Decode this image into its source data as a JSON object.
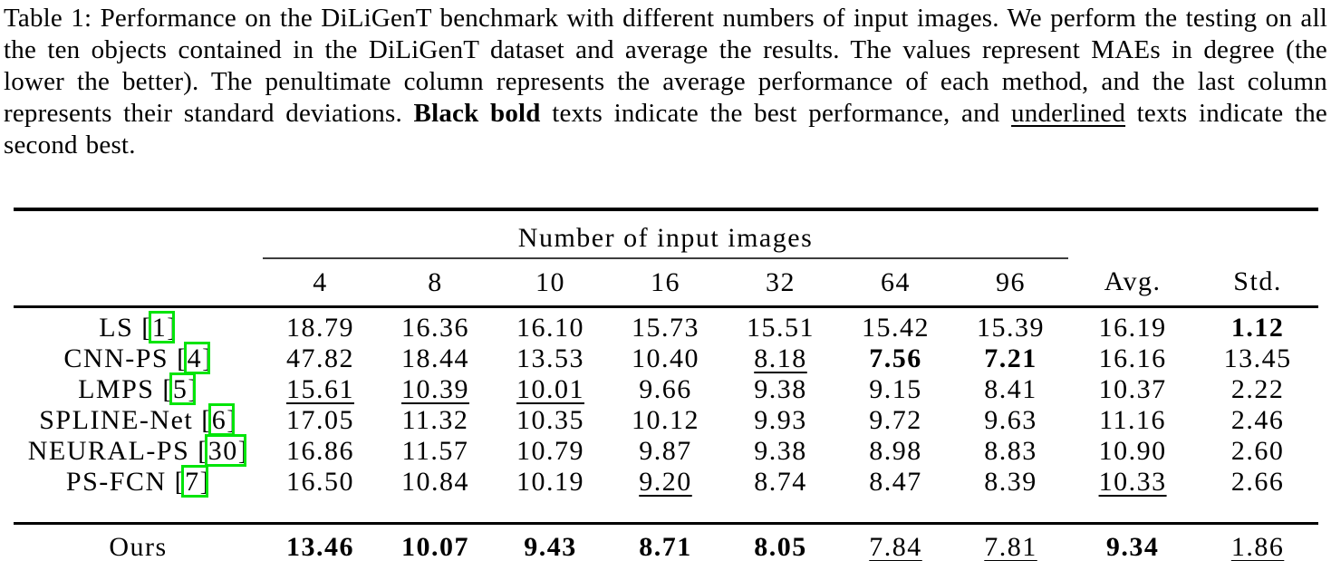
{
  "caption": {
    "segments": [
      {
        "text": "Table 1: Performance on the DiLiGenT benchmark with different numbers of input images. We perform the testing on all the ten objects contained in the DiLiGenT dataset and average the results. The values represent MAEs in degree (the lower the better). The penultimate column represents the average performance of each method, and the last column represents their standard deviations. ",
        "style": "plain"
      },
      {
        "text": "Black bold",
        "style": "bold"
      },
      {
        "text": " texts indicate the best performance, and ",
        "style": "plain"
      },
      {
        "text": "underlined",
        "style": "underline"
      },
      {
        "text": " texts indicate the second best.",
        "style": "plain"
      }
    ]
  },
  "table": {
    "group_header": "Number of input images",
    "columns": [
      "4",
      "8",
      "10",
      "16",
      "32",
      "64",
      "96",
      "Avg.",
      "Std."
    ],
    "rows": [
      {
        "method": {
          "before": "LS [",
          "cite": "1",
          "after": "]"
        },
        "cells": [
          {
            "v": "18.79"
          },
          {
            "v": "16.36"
          },
          {
            "v": "16.10"
          },
          {
            "v": "15.73"
          },
          {
            "v": "15.51"
          },
          {
            "v": "15.42"
          },
          {
            "v": "15.39"
          },
          {
            "v": "16.19"
          },
          {
            "v": "1.12",
            "s": "bold"
          }
        ]
      },
      {
        "method": {
          "before": "CNN-PS [",
          "cite": "4",
          "after": "]"
        },
        "cells": [
          {
            "v": "47.82"
          },
          {
            "v": "18.44"
          },
          {
            "v": "13.53"
          },
          {
            "v": "10.40"
          },
          {
            "v": "8.18",
            "s": "underline"
          },
          {
            "v": "7.56",
            "s": "bold"
          },
          {
            "v": "7.21",
            "s": "bold"
          },
          {
            "v": "16.16"
          },
          {
            "v": "13.45"
          }
        ]
      },
      {
        "method": {
          "before": "LMPS [",
          "cite": "5",
          "after": "]"
        },
        "cells": [
          {
            "v": "15.61",
            "s": "underline"
          },
          {
            "v": "10.39",
            "s": "underline"
          },
          {
            "v": "10.01",
            "s": "underline"
          },
          {
            "v": "9.66"
          },
          {
            "v": "9.38"
          },
          {
            "v": "9.15"
          },
          {
            "v": "8.41"
          },
          {
            "v": "10.37"
          },
          {
            "v": "2.22"
          }
        ]
      },
      {
        "method": {
          "before": "SPLINE-Net [",
          "cite": "6",
          "after": "]"
        },
        "cells": [
          {
            "v": "17.05"
          },
          {
            "v": "11.32"
          },
          {
            "v": "10.35"
          },
          {
            "v": "10.12"
          },
          {
            "v": "9.93"
          },
          {
            "v": "9.72"
          },
          {
            "v": "9.63"
          },
          {
            "v": "11.16"
          },
          {
            "v": "2.46"
          }
        ]
      },
      {
        "method": {
          "before": "NEURAL-PS [",
          "cite": "30",
          "after": "]"
        },
        "cells": [
          {
            "v": "16.86"
          },
          {
            "v": "11.57"
          },
          {
            "v": "10.79"
          },
          {
            "v": "9.87"
          },
          {
            "v": "9.38"
          },
          {
            "v": "8.98"
          },
          {
            "v": "8.83"
          },
          {
            "v": "10.90"
          },
          {
            "v": "2.60"
          }
        ]
      },
      {
        "method": {
          "before": "PS-FCN [",
          "cite": "7",
          "after": "]"
        },
        "cells": [
          {
            "v": "16.50"
          },
          {
            "v": "10.84"
          },
          {
            "v": "10.19"
          },
          {
            "v": "9.20",
            "s": "underline"
          },
          {
            "v": "8.74"
          },
          {
            "v": "8.47"
          },
          {
            "v": "8.39"
          },
          {
            "v": "10.33",
            "s": "underline"
          },
          {
            "v": "2.66"
          }
        ]
      }
    ],
    "footer_row": {
      "method": {
        "before": "Ours",
        "cite": "",
        "after": ""
      },
      "cells": [
        {
          "v": "13.46",
          "s": "bold"
        },
        {
          "v": "10.07",
          "s": "bold"
        },
        {
          "v": "9.43",
          "s": "bold"
        },
        {
          "v": "8.71",
          "s": "bold"
        },
        {
          "v": "8.05",
          "s": "bold"
        },
        {
          "v": "7.84",
          "s": "underline"
        },
        {
          "v": "7.81",
          "s": "underline"
        },
        {
          "v": "9.34",
          "s": "bold"
        },
        {
          "v": "1.86",
          "s": "underline"
        }
      ]
    }
  },
  "colors": {
    "citation_box": "#00e409",
    "rule": "#000000",
    "cmidrule": "#3d3d3d"
  }
}
